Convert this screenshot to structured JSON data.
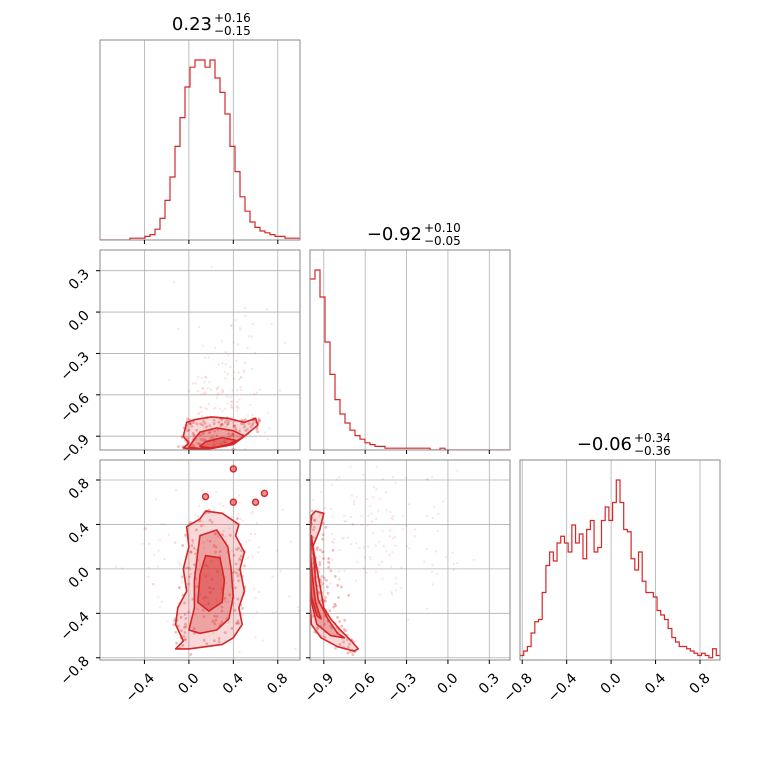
{
  "colors": {
    "accent": "#d62728",
    "axis": "#888888",
    "grid": "#b0b0b0",
    "text": "#000000"
  },
  "chart_data": {
    "type": "corner",
    "titles": [
      {
        "main": "0.23",
        "sup": "+0.16",
        "sub": "−0.15"
      },
      {
        "main": "−0.92",
        "sup": "+0.10",
        "sub": "−0.05"
      },
      {
        "main": "−0.06",
        "sup": "+0.34",
        "sub": "−0.36"
      }
    ],
    "ranges": [
      [
        -0.8,
        1.0
      ],
      [
        -1.0,
        0.45
      ],
      [
        -0.82,
        0.98
      ]
    ],
    "ticks": [
      {
        "values": [
          -0.4,
          0.0,
          0.4,
          0.8
        ],
        "labels": [
          "−0.4",
          "0.0",
          "0.4",
          "0.8"
        ]
      },
      {
        "values": [
          -0.9,
          -0.6,
          -0.3,
          0.0,
          0.3
        ],
        "labels": [
          "−0.9",
          "−0.6",
          "−0.3",
          "0.0",
          "0.3"
        ]
      },
      {
        "values": [
          -0.8,
          -0.4,
          0.0,
          0.4,
          0.8
        ],
        "labels": [
          "−0.8",
          "−0.4",
          "0.0",
          "0.4",
          "0.8"
        ]
      }
    ],
    "histograms": [
      {
        "param": 0,
        "x_start": -0.8,
        "x_end": 1.0,
        "counts": [
          0,
          0,
          0,
          0,
          0,
          0,
          1,
          1,
          1,
          2,
          3,
          6,
          12,
          22,
          35,
          52,
          68,
          85,
          96,
          100,
          100,
          96,
          100,
          90,
          82,
          70,
          52,
          38,
          24,
          16,
          10,
          7,
          5,
          4,
          3,
          2,
          2,
          1,
          1,
          1
        ]
      },
      {
        "param": 1,
        "x_start": -1.0,
        "x_end": 0.45,
        "counts": [
          95,
          100,
          85,
          60,
          42,
          28,
          20,
          15,
          11,
          8,
          6,
          4,
          3,
          2,
          2,
          1,
          1,
          1,
          1,
          1,
          1,
          1,
          1,
          1,
          0,
          0,
          1,
          0,
          0,
          0,
          0,
          0,
          0,
          0,
          0,
          0,
          0,
          0,
          0,
          0
        ]
      },
      {
        "param": 2,
        "x_start": -0.82,
        "x_end": 0.98,
        "counts": [
          2,
          4,
          6,
          12,
          17,
          18,
          30,
          42,
          48,
          44,
          52,
          55,
          52,
          48,
          60,
          52,
          56,
          45,
          58,
          62,
          48,
          50,
          62,
          68,
          62,
          70,
          80,
          70,
          58,
          57,
          45,
          40,
          48,
          35,
          30,
          30,
          28,
          22,
          20,
          18,
          14,
          10,
          8,
          6,
          6,
          5,
          4,
          3,
          2,
          3,
          2,
          1,
          5,
          2
        ]
      }
    ],
    "pairs": [
      {
        "x_param": 0,
        "y_param": 1,
        "contours": [
          [
            [
              -0.05,
              -0.985
            ],
            [
              0.0,
              -0.95
            ],
            [
              -0.05,
              -0.9
            ],
            [
              -0.02,
              -0.8
            ],
            [
              0.05,
              -0.78
            ],
            [
              0.2,
              -0.76
            ],
            [
              0.35,
              -0.77
            ],
            [
              0.5,
              -0.8
            ],
            [
              0.6,
              -0.77
            ],
            [
              0.62,
              -0.82
            ],
            [
              0.5,
              -0.9
            ],
            [
              0.4,
              -0.96
            ],
            [
              0.2,
              -0.99
            ],
            [
              0.05,
              -0.995
            ]
          ],
          [
            [
              0.0,
              -0.98
            ],
            [
              0.05,
              -0.92
            ],
            [
              0.1,
              -0.87
            ],
            [
              0.25,
              -0.84
            ],
            [
              0.4,
              -0.86
            ],
            [
              0.5,
              -0.9
            ],
            [
              0.4,
              -0.95
            ],
            [
              0.25,
              -0.98
            ],
            [
              0.1,
              -0.99
            ]
          ],
          [
            [
              0.1,
              -0.975
            ],
            [
              0.15,
              -0.94
            ],
            [
              0.3,
              -0.91
            ],
            [
              0.42,
              -0.93
            ],
            [
              0.35,
              -0.965
            ],
            [
              0.2,
              -0.985
            ]
          ]
        ],
        "cloud": {
          "cx": 0.32,
          "cy": -0.6,
          "sx": 0.22,
          "sy": 0.28
        }
      },
      {
        "x_param": 0,
        "y_param": 2,
        "contours": [
          [
            [
              -0.12,
              -0.72
            ],
            [
              -0.05,
              -0.65
            ],
            [
              -0.12,
              -0.5
            ],
            [
              -0.1,
              -0.35
            ],
            [
              -0.02,
              -0.2
            ],
            [
              -0.05,
              0.0
            ],
            [
              0.0,
              0.2
            ],
            [
              -0.02,
              0.38
            ],
            [
              0.1,
              0.45
            ],
            [
              0.15,
              0.52
            ],
            [
              0.3,
              0.5
            ],
            [
              0.45,
              0.4
            ],
            [
              0.42,
              0.3
            ],
            [
              0.5,
              0.15
            ],
            [
              0.46,
              0.0
            ],
            [
              0.5,
              -0.2
            ],
            [
              0.45,
              -0.35
            ],
            [
              0.48,
              -0.5
            ],
            [
              0.4,
              -0.62
            ],
            [
              0.3,
              -0.68
            ],
            [
              0.15,
              -0.7
            ],
            [
              0.0,
              -0.72
            ]
          ],
          [
            [
              0.0,
              -0.55
            ],
            [
              0.05,
              -0.35
            ],
            [
              0.05,
              -0.1
            ],
            [
              0.08,
              0.15
            ],
            [
              0.1,
              0.3
            ],
            [
              0.25,
              0.35
            ],
            [
              0.35,
              0.2
            ],
            [
              0.38,
              0.0
            ],
            [
              0.4,
              -0.25
            ],
            [
              0.36,
              -0.45
            ],
            [
              0.25,
              -0.55
            ],
            [
              0.1,
              -0.58
            ]
          ],
          [
            [
              0.08,
              -0.3
            ],
            [
              0.1,
              -0.05
            ],
            [
              0.15,
              0.12
            ],
            [
              0.28,
              0.1
            ],
            [
              0.32,
              -0.1
            ],
            [
              0.3,
              -0.3
            ],
            [
              0.18,
              -0.38
            ]
          ]
        ],
        "islands": [
          [
            0.4,
            0.9
          ],
          [
            0.68,
            0.68
          ],
          [
            0.6,
            0.6
          ],
          [
            0.15,
            0.65
          ],
          [
            0.4,
            0.6
          ]
        ],
        "cloud": {
          "cx": 0.2,
          "cy": 0.0,
          "sx": 0.35,
          "sy": 0.45
        }
      },
      {
        "x_param": 1,
        "y_param": 2,
        "contours": [
          [
            [
              -0.99,
              0.48
            ],
            [
              -0.96,
              0.52
            ],
            [
              -0.9,
              0.5
            ],
            [
              -0.93,
              0.35
            ],
            [
              -0.98,
              0.2
            ],
            [
              -0.95,
              0.0
            ],
            [
              -0.92,
              -0.2
            ],
            [
              -0.9,
              -0.35
            ],
            [
              -0.85,
              -0.45
            ],
            [
              -0.78,
              -0.55
            ],
            [
              -0.7,
              -0.65
            ],
            [
              -0.65,
              -0.72
            ],
            [
              -0.68,
              -0.74
            ],
            [
              -0.8,
              -0.7
            ],
            [
              -0.92,
              -0.62
            ],
            [
              -0.99,
              -0.5
            ],
            [
              -1.0,
              -0.3
            ],
            [
              -1.0,
              0.0
            ],
            [
              -1.0,
              0.3
            ]
          ],
          [
            [
              -0.99,
              0.3
            ],
            [
              -0.97,
              0.1
            ],
            [
              -0.96,
              -0.1
            ],
            [
              -0.94,
              -0.28
            ],
            [
              -0.87,
              -0.45
            ],
            [
              -0.8,
              -0.58
            ],
            [
              -0.75,
              -0.62
            ],
            [
              -0.85,
              -0.6
            ],
            [
              -0.95,
              -0.5
            ],
            [
              -0.99,
              -0.3
            ],
            [
              -1.0,
              0.0
            ]
          ],
          [
            [
              -0.995,
              0.1
            ],
            [
              -0.98,
              -0.1
            ],
            [
              -0.96,
              -0.3
            ],
            [
              -0.92,
              -0.45
            ],
            [
              -0.95,
              -0.42
            ],
            [
              -0.99,
              -0.25
            ],
            [
              -1.0,
              0.0
            ]
          ]
        ],
        "cloud": {
          "cx": -0.55,
          "cy": 0.3,
          "sx": 0.35,
          "sy": 0.35
        }
      }
    ]
  }
}
